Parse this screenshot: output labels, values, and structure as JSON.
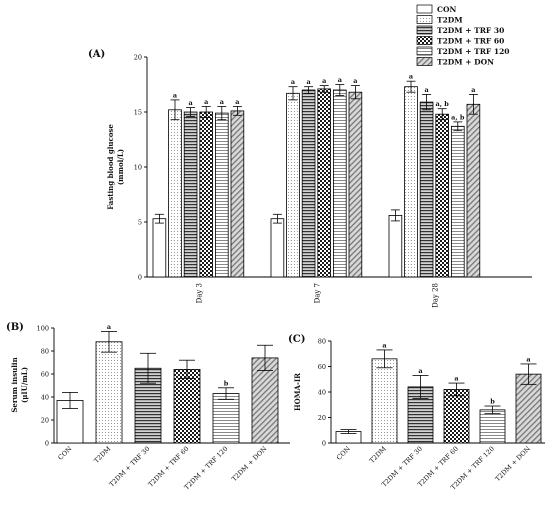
{
  "chart_data": [
    {
      "type": "bar",
      "panel_label": "(A)",
      "title": "",
      "xlabel": "",
      "ylabel": "Fasting blood glucose",
      "ylabel_unit": "(mmol/L)",
      "ylim": [
        0,
        20
      ],
      "yticks": [
        "0",
        "5",
        "10",
        "15",
        "20"
      ],
      "categories": [
        "Day 3",
        "Day 7",
        "Day 28"
      ],
      "legend_position": "top-right",
      "series": [
        {
          "name": "CON",
          "values": [
            5.3,
            5.3,
            5.6
          ],
          "errors": [
            0.4,
            0.4,
            0.5
          ],
          "annotations": [
            "",
            "",
            ""
          ]
        },
        {
          "name": "T2DM",
          "values": [
            15.2,
            16.7,
            17.3
          ],
          "errors": [
            0.9,
            0.6,
            0.5
          ],
          "annotations": [
            "a",
            "a",
            "a"
          ]
        },
        {
          "name": "T2DM + TRF 30",
          "values": [
            15.0,
            17.0,
            15.9
          ],
          "errors": [
            0.4,
            0.3,
            0.7
          ],
          "annotations": [
            "a",
            "a",
            "a"
          ]
        },
        {
          "name": "T2DM + TRF 60",
          "values": [
            15.0,
            17.1,
            14.8
          ],
          "errors": [
            0.5,
            0.3,
            0.5
          ],
          "annotations": [
            "a",
            "a",
            "a, b"
          ]
        },
        {
          "name": "T2DM + TRF 120",
          "values": [
            14.9,
            17.0,
            13.7
          ],
          "errors": [
            0.6,
            0.5,
            0.4
          ],
          "annotations": [
            "a",
            "a",
            "a, b"
          ]
        },
        {
          "name": "T2DM + DON",
          "values": [
            15.1,
            16.8,
            15.7
          ],
          "errors": [
            0.4,
            0.6,
            0.9
          ],
          "annotations": [
            "a",
            "a",
            "a"
          ]
        }
      ]
    },
    {
      "type": "bar",
      "panel_label": "(B)",
      "title": "",
      "xlabel": "",
      "ylabel": "Serum insulin",
      "ylabel_unit": "(μIU/mL)",
      "ylim": [
        0,
        100
      ],
      "yticks": [
        "0",
        "20",
        "40",
        "60",
        "80",
        "100"
      ],
      "categories": [
        "CON",
        "T2DM",
        "T2DM + TRF 30",
        "T2DM + TRF 60",
        "T2DM + TRF 120",
        "T2DM + DON"
      ],
      "values": [
        37,
        88,
        65,
        64,
        43,
        74
      ],
      "errors": [
        7,
        9,
        13,
        8,
        5,
        11
      ],
      "annotations": [
        "",
        "a",
        "",
        "",
        "b",
        ""
      ]
    },
    {
      "type": "bar",
      "panel_label": "(C)",
      "title": "",
      "xlabel": "",
      "ylabel": "HOMA-IR",
      "ylim": [
        0,
        80
      ],
      "yticks": [
        "0",
        "20",
        "40",
        "60",
        "80"
      ],
      "categories": [
        "CON",
        "T2DM",
        "T2DM + TRF 30",
        "T2DM + TRF 60",
        "T2DM + TRF 120",
        "T2DM + DON"
      ],
      "values": [
        9,
        66,
        44,
        42,
        26,
        54
      ],
      "errors": [
        1.5,
        7,
        9,
        5,
        3,
        8
      ],
      "annotations": [
        "",
        "a",
        "a",
        "a",
        "b",
        "a"
      ]
    }
  ]
}
